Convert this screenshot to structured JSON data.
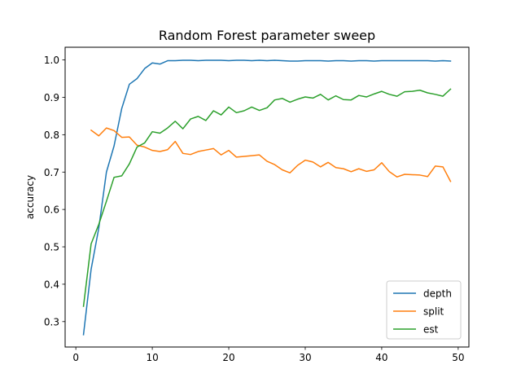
{
  "chart_data": {
    "type": "line",
    "title": "Random Forest parameter sweep",
    "xlabel": "",
    "ylabel": "accuracy",
    "xlim": [
      -1.4,
      51.4
    ],
    "ylim": [
      0.232,
      1.034
    ],
    "x_ticks": [
      0,
      10,
      20,
      30,
      40,
      50
    ],
    "y_ticks": [
      0.3,
      0.4,
      0.5,
      0.6,
      0.7,
      0.8,
      0.9,
      1.0
    ],
    "x_tick_labels": [
      "0",
      "10",
      "20",
      "30",
      "40",
      "50"
    ],
    "y_tick_labels": [
      "0.3",
      "0.4",
      "0.5",
      "0.6",
      "0.7",
      "0.8",
      "0.9",
      "1.0"
    ],
    "grid": false,
    "legend_position": "lower-right",
    "series": [
      {
        "name": "depth",
        "color": "#1f77b4",
        "x": [
          1,
          2,
          3,
          4,
          5,
          6,
          7,
          8,
          9,
          10,
          11,
          12,
          13,
          14,
          15,
          16,
          17,
          18,
          19,
          20,
          21,
          22,
          23,
          24,
          25,
          26,
          27,
          28,
          29,
          30,
          31,
          32,
          33,
          34,
          35,
          36,
          37,
          38,
          39,
          40,
          41,
          42,
          43,
          44,
          45,
          46,
          47,
          48,
          49
        ],
        "values": [
          0.265,
          0.44,
          0.55,
          0.7,
          0.77,
          0.87,
          0.935,
          0.95,
          0.977,
          0.992,
          0.989,
          0.998,
          0.998,
          0.999,
          0.999,
          0.998,
          0.999,
          0.999,
          0.999,
          0.998,
          0.999,
          0.999,
          0.998,
          0.999,
          0.998,
          0.999,
          0.998,
          0.997,
          0.997,
          0.998,
          0.998,
          0.998,
          0.997,
          0.998,
          0.998,
          0.997,
          0.998,
          0.998,
          0.997,
          0.998,
          0.998,
          0.998,
          0.998,
          0.998,
          0.998,
          0.998,
          0.997,
          0.998,
          0.997
        ]
      },
      {
        "name": "split",
        "color": "#ff7f0e",
        "x": [
          2,
          3,
          4,
          5,
          6,
          7,
          8,
          9,
          10,
          11,
          12,
          13,
          14,
          15,
          16,
          17,
          18,
          19,
          20,
          21,
          22,
          23,
          24,
          25,
          26,
          27,
          28,
          29,
          30,
          31,
          32,
          33,
          34,
          35,
          36,
          37,
          38,
          39,
          40,
          41,
          42,
          43,
          44,
          45,
          46,
          47,
          48,
          49
        ],
        "values": [
          0.812,
          0.797,
          0.818,
          0.811,
          0.793,
          0.794,
          0.772,
          0.767,
          0.758,
          0.755,
          0.76,
          0.782,
          0.75,
          0.747,
          0.755,
          0.759,
          0.763,
          0.746,
          0.758,
          0.74,
          0.742,
          0.744,
          0.746,
          0.729,
          0.72,
          0.706,
          0.698,
          0.718,
          0.732,
          0.727,
          0.714,
          0.726,
          0.712,
          0.709,
          0.701,
          0.709,
          0.702,
          0.706,
          0.725,
          0.701,
          0.687,
          0.694,
          0.693,
          0.692,
          0.688,
          0.716,
          0.714,
          0.675
        ]
      },
      {
        "name": "est",
        "color": "#2ca02c",
        "x": [
          1,
          2,
          3,
          4,
          5,
          6,
          7,
          8,
          9,
          10,
          11,
          12,
          13,
          14,
          15,
          16,
          17,
          18,
          19,
          20,
          21,
          22,
          23,
          24,
          25,
          26,
          27,
          28,
          29,
          30,
          31,
          32,
          33,
          34,
          35,
          36,
          37,
          38,
          39,
          40,
          41,
          42,
          43,
          44,
          45,
          46,
          47,
          48,
          49
        ],
        "values": [
          0.341,
          0.508,
          0.56,
          0.622,
          0.686,
          0.69,
          0.722,
          0.767,
          0.778,
          0.808,
          0.804,
          0.818,
          0.836,
          0.816,
          0.842,
          0.849,
          0.838,
          0.864,
          0.853,
          0.874,
          0.859,
          0.864,
          0.874,
          0.865,
          0.872,
          0.893,
          0.897,
          0.887,
          0.895,
          0.901,
          0.898,
          0.908,
          0.893,
          0.904,
          0.894,
          0.893,
          0.905,
          0.901,
          0.909,
          0.916,
          0.908,
          0.903,
          0.915,
          0.916,
          0.919,
          0.912,
          0.908,
          0.903,
          0.922
        ]
      }
    ]
  }
}
